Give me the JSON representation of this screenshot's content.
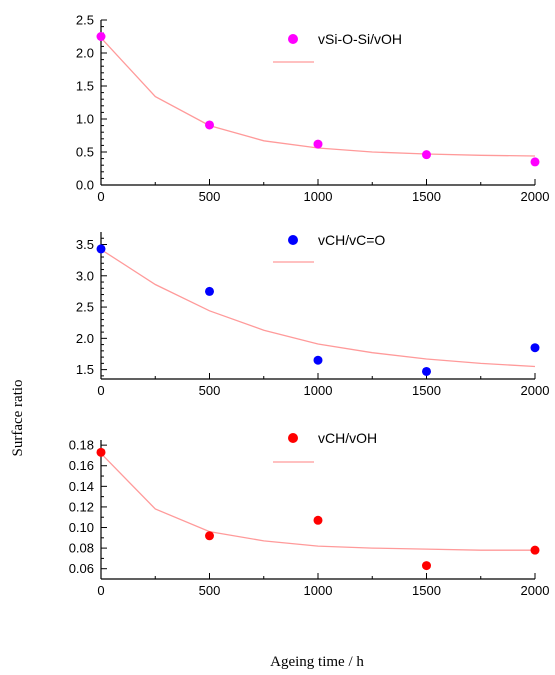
{
  "figure": {
    "ylabel": "Surface ratio",
    "xlabel": "Ageing time / h"
  },
  "chart_data": [
    {
      "type": "scatter",
      "x": [
        0,
        500,
        1000,
        1500,
        2000
      ],
      "series": [
        {
          "name": "vSi-O-Si/vOH",
          "values": [
            2.25,
            0.91,
            0.62,
            0.46,
            0.35
          ],
          "color": "#ff00ff",
          "fit": {
            "x": [
              0,
              250,
              500,
              750,
              1000,
              1250,
              1500,
              1750,
              2000
            ],
            "values": [
              2.23,
              1.34,
              0.9,
              0.67,
              0.56,
              0.5,
              0.47,
              0.45,
              0.44
            ],
            "color": "#ff9a9a"
          }
        }
      ],
      "xlim": [
        0,
        2000
      ],
      "ylim": [
        0,
        2.5
      ],
      "xticks": [
        "0",
        "500",
        "1000",
        "1500",
        "2000"
      ],
      "yticks": [
        "0.0",
        "0.5",
        "1.0",
        "1.5",
        "2.0",
        "2.5"
      ],
      "legend": "top-right"
    },
    {
      "type": "scatter",
      "x": [
        0,
        500,
        1000,
        1500,
        2000
      ],
      "series": [
        {
          "name": "vCH/vC=O",
          "values": [
            3.43,
            2.75,
            1.65,
            1.47,
            1.85
          ],
          "color": "#0000ff",
          "fit": {
            "x": [
              0,
              250,
              500,
              750,
              1000,
              1250,
              1500,
              1750,
              2000
            ],
            "values": [
              3.42,
              2.86,
              2.44,
              2.13,
              1.91,
              1.77,
              1.67,
              1.6,
              1.55
            ],
            "color": "#ff9a9a"
          }
        }
      ],
      "xlim": [
        0,
        2000
      ],
      "ylim": [
        1.35,
        3.7
      ],
      "xticks": [
        "0",
        "500",
        "1000",
        "1500",
        "2000"
      ],
      "yticks": [
        "1.5",
        "2.0",
        "2.5",
        "3.0",
        "3.5"
      ],
      "legend": "top-right"
    },
    {
      "type": "scatter",
      "x": [
        0,
        500,
        1000,
        1500,
        2000
      ],
      "series": [
        {
          "name": "vCH/vOH",
          "values": [
            0.173,
            0.092,
            0.107,
            0.063,
            0.078
          ],
          "color": "#ff0000",
          "fit": {
            "x": [
              0,
              250,
              500,
              750,
              1000,
              1250,
              1500,
              1750,
              2000
            ],
            "values": [
              0.172,
              0.118,
              0.096,
              0.087,
              0.082,
              0.08,
              0.079,
              0.078,
              0.078
            ],
            "color": "#ff9a9a"
          }
        }
      ],
      "xlim": [
        0,
        2000
      ],
      "ylim": [
        0.05,
        0.185
      ],
      "xticks": [
        "0",
        "500",
        "1000",
        "1500",
        "2000"
      ],
      "yticks": [
        "0.06",
        "0.08",
        "0.10",
        "0.12",
        "0.14",
        "0.16",
        "0.18"
      ],
      "legend": "top-right"
    }
  ]
}
